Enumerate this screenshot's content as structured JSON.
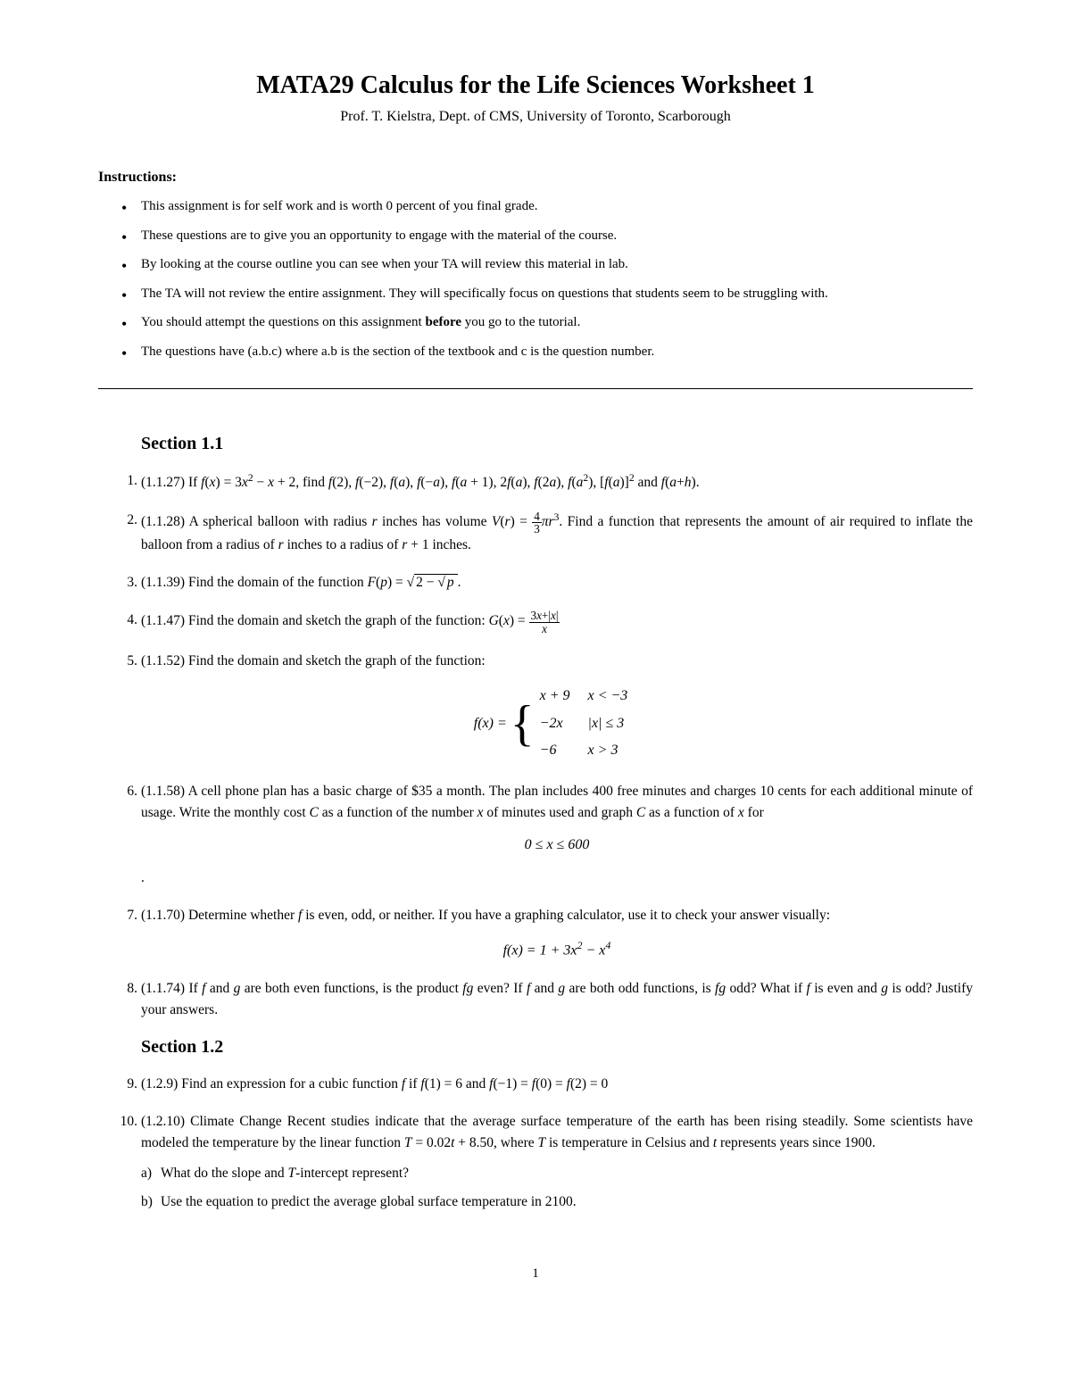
{
  "title": "MATA29 Calculus for the Life Sciences Worksheet 1",
  "subtitle": "Prof. T. Kielstra, Dept. of CMS, University of Toronto, Scarborough",
  "instructions_label": "Instructions:",
  "instructions": [
    "This assignment is for self work and is worth 0 percent of you final grade.",
    "These questions are to give you an opportunity to engage with the material of the course.",
    "By looking at the course outline you can see when your TA will review this material in lab.",
    "The TA will not review the entire assignment.  They will specifically focus on questions that students seem to be struggling with.",
    "You should attempt the questions on this assignment <b>before</b> you go to the tutorial.",
    "The questions have (a.b.c) where a.b is the section of the textbook and c is the question number."
  ],
  "sections": [
    {
      "title": "Section 1.1",
      "questions": [
        "(1.1.27) If <i>f</i>(<i>x</i>) = 3<i>x</i><sup>2</sup> − <i>x</i> + 2, find <i>f</i>(2), <i>f</i>(−2), <i>f</i>(<i>a</i>), <i>f</i>(−<i>a</i>), <i>f</i>(<i>a</i> + 1), 2<i>f</i>(<i>a</i>), <i>f</i>(2<i>a</i>), <i>f</i>(<i>a</i><sup>2</sup>), [<i>f</i>(<i>a</i>)]<sup>2</sup> and <i>f</i>(<i>a</i>+<i>h</i>).",
        "(1.1.28) A spherical balloon with radius <i>r</i> inches has volume <i>V</i>(<i>r</i>) = <span class='frac'><span class='num'>4</span><span class='den'>3</span></span><i>πr</i><sup>3</sup>. Find a function that represents the amount of air required to inflate the balloon from a radius of <i>r</i> inches to a radius of <i>r</i> + 1 inches.",
        "(1.1.39) Find the domain of the function  <i>F</i>(<i>p</i>) = <span class='sqrt'><span class='sqrt-arg'>2 − <span class='sqrt'><span class='sqrt-arg'><i>p</i></span></span></span></span>.",
        "(1.1.47) Find the domain and sketch the graph of the function: <i>G</i>(<i>x</i>) = <span class='frac'><span class='num'>3<i>x</i>+|<i>x</i>|</span><span class='den'><i>x</i></span></span>",
        "(1.1.52) Find the domain and sketch the graph of the function:<div class='math-display'><i>f</i>(<i>x</i>) = <span class='brace'>{</span><table class='piecewise-table'><tr><td><i>x</i> + 9</td><td><i>x</i> &lt; −3</td></tr><tr><td>−2<i>x</i></td><td>|<i>x</i>| ≤ 3</td></tr><tr><td>−6</td><td><i>x</i> &gt; 3</td></tr></table></div>",
        "(1.1.58) A cell phone plan has a basic charge of $35 a month. The plan includes 400 free minutes and charges 10 cents for each additional minute of usage. Write the monthly cost <i>C</i> as a function of the number <i>x</i> of minutes used and graph <i>C</i> as a function of <i>x</i> for<div class='math-display'>0 ≤ <i>x</i> ≤ 600</div>.",
        "(1.1.70) Determine whether <i>f</i> is even, odd, or neither. If you have a graphing calculator, use it to check your answer visually:<div class='math-display'><i>f</i>(<i>x</i>) = 1 + 3<i>x</i><sup>2</sup> − <i>x</i><sup>4</sup></div>",
        "(1.1.74) If <i>f</i> and <i>g</i> are both even functions, is the product <i>fg</i> even? If <i>f</i> and <i>g</i> are both odd functions, is <i>fg</i> odd? What if <i>f</i> is even and <i>g</i> is odd? Justify your answers."
      ]
    },
    {
      "title": "Section 1.2",
      "questions": [
        "(1.2.9) Find an expression for a cubic function <i>f</i> if <i>f</i>(1) = 6 and <i>f</i>(−1) = <i>f</i>(0) = <i>f</i>(2) = 0",
        "(1.2.10) Climate Change Recent studies indicate that the average surface temperature of the earth has been rising steadily. Some scientists have modeled the temperature by the linear function <i>T</i> = 0.02<i>t</i> + 8.50, where <i>T</i> is temperature in Celsius and <i>t</i> represents years since 1900.<ul class='sub-list'><li data-label='a)' data-name='sub-question-a' data-interactable='false'>What do the slope and <i>T</i>-intercept represent?</li><li data-label='b)' data-name='sub-question-b' data-interactable='false'>Use the equation to predict the average global surface temperature in 2100.</li></ul>"
      ]
    }
  ],
  "page_number": "1"
}
